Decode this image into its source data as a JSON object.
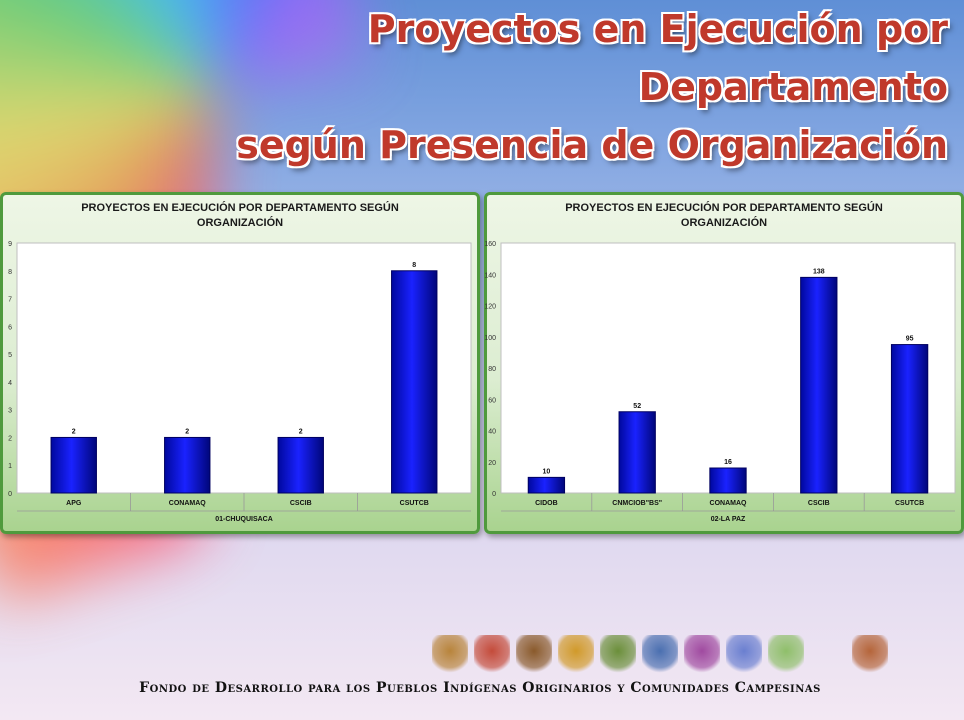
{
  "slide": {
    "title_line1": "Proyectos en Ejecución por Departamento",
    "title_line2": "según Presencia de Organización",
    "footer": "Fondo de Desarrollo para los Pueblos Indígenas Originarios y Comunidades Campesinas"
  },
  "logos": [
    "figure-logo",
    "map-logo",
    "arrows-logo",
    "ciddb-logo",
    "shield-logo",
    "mountain-logo",
    "wiphala-logo",
    "apg-logo",
    "bolivia-map-logo",
    "bow-logo",
    "vessel-logo"
  ],
  "colors": {
    "bar": "#0a0fd6",
    "panel_border": "#4f9a3d",
    "title": "#c0392b"
  },
  "chart_data": [
    {
      "type": "bar",
      "title_line1": "PROYECTOS EN EJECUCIÓN POR DEPARTAMENTO SEGÚN",
      "title_line2": "ORGANIZACIÓN",
      "categories": [
        "APG",
        "CONAMAQ",
        "CSCIB",
        "CSUTCB"
      ],
      "values": [
        2,
        2,
        2,
        8
      ],
      "group_label": "01-CHUQUISACA",
      "ylim": [
        0,
        9
      ],
      "yticks": [
        0,
        1,
        2,
        3,
        4,
        5,
        6,
        7,
        8,
        9
      ],
      "grid": false
    },
    {
      "type": "bar",
      "title_line1": "PROYECTOS EN EJECUCIÓN POR DEPARTAMENTO SEGÚN",
      "title_line2": "ORGANIZACIÓN",
      "categories": [
        "CIDOB",
        "CNMCIOB\"BS\"",
        "CONAMAQ",
        "CSCIB",
        "CSUTCB"
      ],
      "values": [
        10,
        52,
        16,
        138,
        95
      ],
      "group_label": "02-LA PAZ",
      "ylim": [
        0,
        160
      ],
      "yticks": [
        0,
        20,
        40,
        60,
        80,
        100,
        120,
        140,
        160
      ],
      "grid": false
    }
  ]
}
